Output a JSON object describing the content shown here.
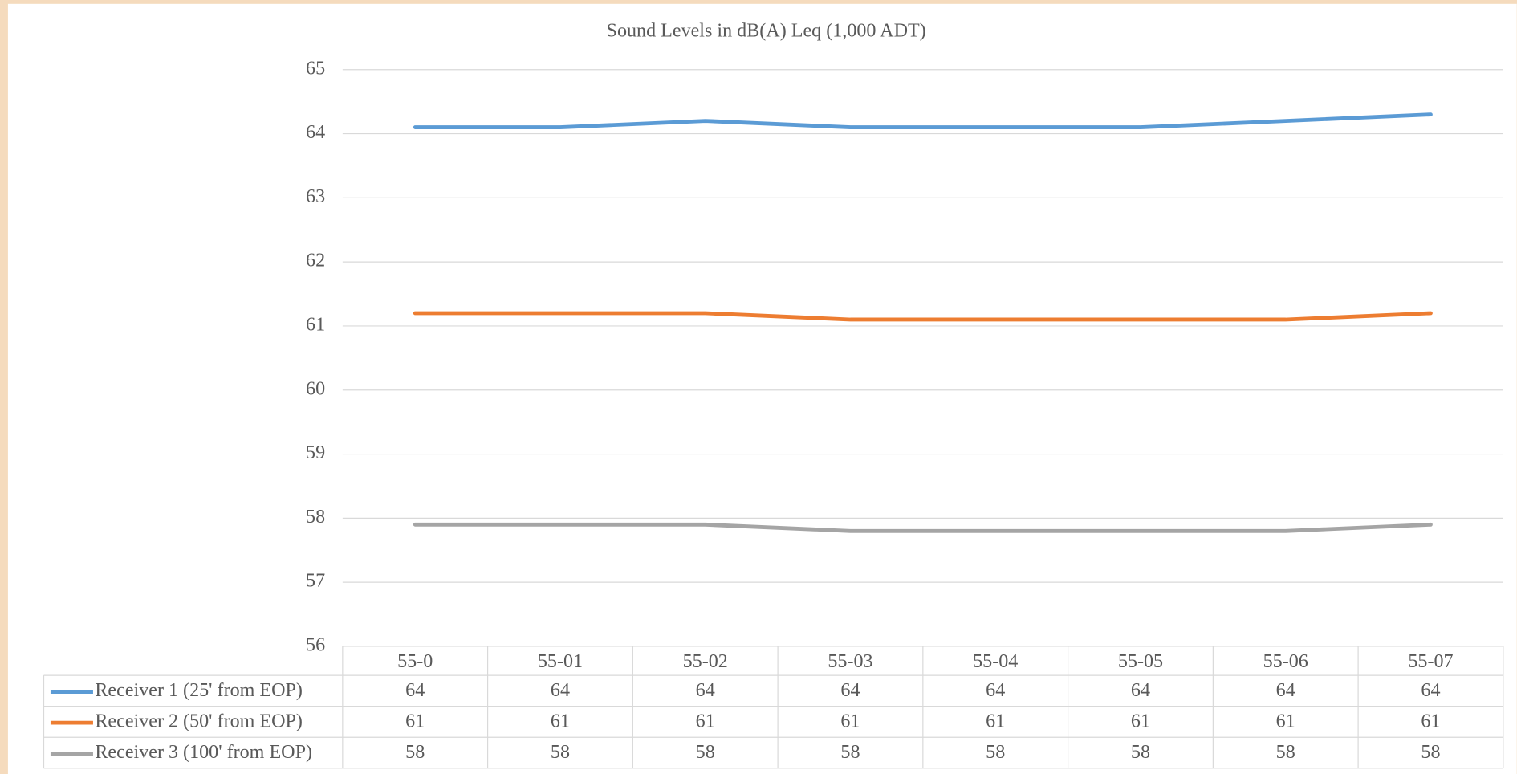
{
  "chart_data": {
    "type": "line",
    "title": "Sound Levels in dB(A) Leq (1,000 ADT)",
    "categories": [
      "55-0",
      "55-01",
      "55-02",
      "55-03",
      "55-04",
      "55-05",
      "55-06",
      "55-07"
    ],
    "series": [
      {
        "name": "Receiver 1 (25' from EOP)",
        "color": "#5b9bd5",
        "values": [
          64.1,
          64.1,
          64.2,
          64.1,
          64.1,
          64.1,
          64.2,
          64.3
        ],
        "value_labels": [
          "64",
          "64",
          "64",
          "64",
          "64",
          "64",
          "64",
          "64"
        ]
      },
      {
        "name": "Receiver 2 (50' from EOP)",
        "color": "#ed7d31",
        "values": [
          61.2,
          61.2,
          61.2,
          61.1,
          61.1,
          61.1,
          61.1,
          61.2
        ],
        "value_labels": [
          "61",
          "61",
          "61",
          "61",
          "61",
          "61",
          "61",
          "61"
        ]
      },
      {
        "name": "Receiver 3 (100' from EOP)",
        "color": "#a5a5a5",
        "values": [
          57.9,
          57.9,
          57.9,
          57.8,
          57.8,
          57.8,
          57.8,
          57.9
        ],
        "value_labels": [
          "58",
          "58",
          "58",
          "58",
          "58",
          "58",
          "58",
          "58"
        ]
      }
    ],
    "ylim": [
      56,
      65
    ],
    "yticks": [
      56,
      57,
      58,
      59,
      60,
      61,
      62,
      63,
      64,
      65
    ],
    "grid": true
  }
}
